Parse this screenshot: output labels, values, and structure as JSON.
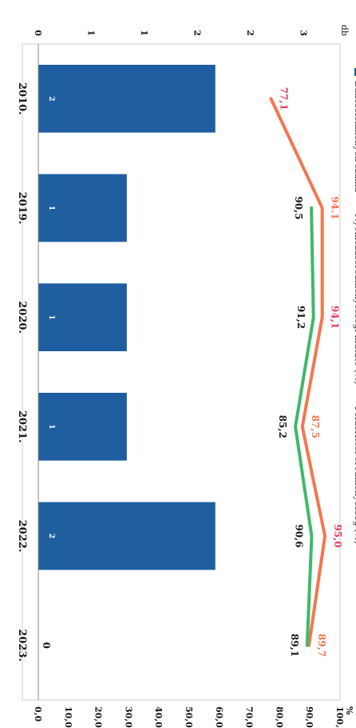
{
  "chart_data": {
    "type": "bar",
    "categories": [
      "2010.",
      "2019.",
      "2020.",
      "2021.",
      "2022.",
      "2023."
    ],
    "series": [
      {
        "name": "Bűncselekmények száma",
        "kind": "bar",
        "axis": "left",
        "values": [
          2,
          1,
          1,
          1,
          2,
          0
        ],
        "value_labels": [
          "2",
          "1",
          "1",
          "1",
          "2",
          "0"
        ],
        "color": "#1f5fa0"
      },
      {
        "name": "Nyomozáseredményességi mutató (%)",
        "kind": "line",
        "axis": "right",
        "values": [
          77.1,
          94.1,
          94.1,
          87.5,
          95.0,
          89.7
        ],
        "value_labels": [
          "77,1",
          "94.1",
          "94,1",
          "87,5",
          "95,0",
          "89,7"
        ],
        "color": "#f4764f"
      },
      {
        "name": "Felderítési eredményesség (%)",
        "kind": "line",
        "axis": "right",
        "values": [
          null,
          90.5,
          91.2,
          85.2,
          90.6,
          89.1
        ],
        "value_labels": [
          "",
          "90,5",
          "91,2",
          "85,2",
          "90,6",
          "89,1"
        ],
        "color": "#3fb86a"
      }
    ],
    "left_axis": {
      "label": "db",
      "ticks": [
        "0",
        "1",
        "1",
        "2",
        "2",
        "3"
      ],
      "ylim": [
        0,
        3
      ]
    },
    "right_axis": {
      "label": "%",
      "ticks": [
        "0,0",
        "10,0",
        "20,0",
        "30,0",
        "40,0",
        "50,0",
        "60,0",
        "70,0",
        "80,0",
        "90,0",
        "100,0"
      ],
      "ylim": [
        0,
        100
      ]
    },
    "legend_position": "top",
    "grid": false,
    "label_colors": {
      "highlight": "#e23a62",
      "default": "#1a1a1a"
    }
  }
}
